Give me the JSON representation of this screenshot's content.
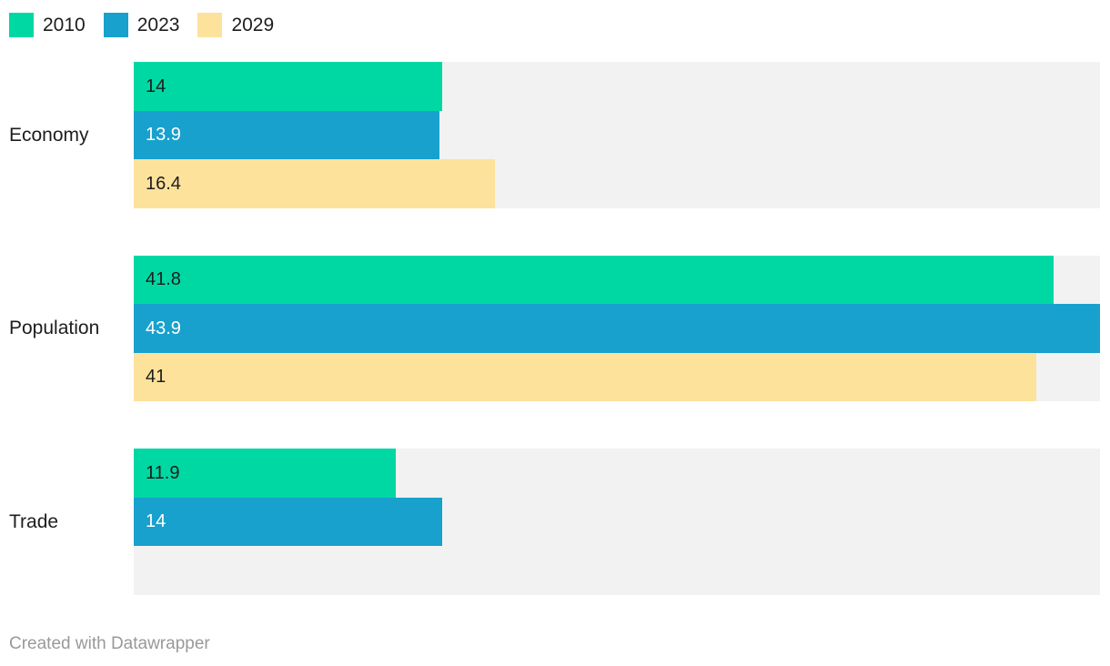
{
  "chart_data": {
    "type": "bar",
    "orientation": "horizontal",
    "categories": [
      "Economy",
      "Population",
      "Trade"
    ],
    "series": [
      {
        "name": "2010",
        "color": "#00D8A4",
        "label_color": "#1D1D1D",
        "values": [
          14,
          41.8,
          11.9
        ],
        "value_labels": [
          "14",
          "41.8",
          "11.9"
        ]
      },
      {
        "name": "2023",
        "color": "#18A1CD",
        "label_color": "#FFFFFF",
        "values": [
          13.9,
          43.9,
          14
        ],
        "value_labels": [
          "13.9",
          "43.9",
          "14"
        ]
      },
      {
        "name": "2029",
        "color": "#FDE29C",
        "label_color": "#1D1D1D",
        "values": [
          16.4,
          41,
          null
        ],
        "value_labels": [
          "16.4",
          "41",
          null
        ]
      }
    ],
    "xlim": [
      0,
      43.9
    ],
    "value_labels_inside_bars": true,
    "track_color": "#F2F2F2",
    "legend_position": "top",
    "grid": false,
    "axis_visible": false
  },
  "footer": {
    "credit": "Created with Datawrapper"
  }
}
